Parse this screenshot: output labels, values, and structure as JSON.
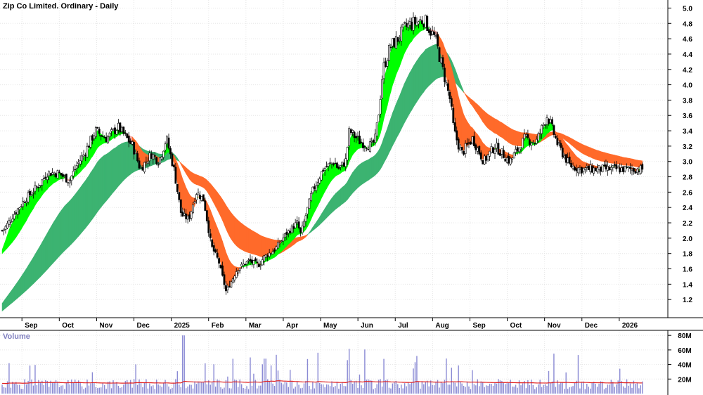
{
  "chart_data": [
    {
      "type": "candlestick",
      "title": "Zip Co Limited. Ordinary - Daily",
      "y_ticks": [
        "5.0",
        "4.8",
        "4.6",
        "4.4",
        "4.2",
        "4.0",
        "3.8",
        "3.6",
        "3.4",
        "3.2",
        "3.0",
        "2.8",
        "2.6",
        "2.4",
        "2.2",
        "2.0",
        "1.8",
        "1.6",
        "1.4",
        "1.2"
      ],
      "ylim": [
        1.0,
        5.05
      ],
      "x_ticks": [
        "Sep",
        "Oct",
        "Nov",
        "Dec",
        "2025",
        "Feb",
        "Mar",
        "Apr",
        "May",
        "Jun",
        "Jul",
        "Aug",
        "Sep",
        "Oct",
        "Nov",
        "Dec",
        "2026"
      ],
      "grid": true,
      "price_path": {
        "x_months": [
          0,
          0.1,
          0.3,
          0.6,
          1.0,
          1.2,
          1.5,
          1.8,
          2.0,
          2.2,
          2.5,
          2.8,
          3.0,
          3.1,
          3.5,
          3.7,
          4.0,
          4.2,
          4.4,
          4.6,
          4.8,
          5.0,
          5.2,
          5.4,
          5.6,
          5.8,
          6.0,
          6.3,
          6.6,
          6.9,
          7.0,
          7.3,
          7.6,
          7.9,
          8.0,
          8.3,
          8.6,
          8.9,
          9.0,
          9.2,
          9.3,
          9.6,
          9.9,
          10.0,
          10.1,
          10.2,
          10.4,
          10.6,
          10.8,
          11.0,
          11.3,
          11.6,
          12.0,
          12.1,
          12.3,
          12.6,
          12.9,
          13.2,
          13.6,
          14.0,
          14.3,
          14.6,
          14.9,
          15.2,
          15.5
        ],
        "close": [
          2.1,
          2.15,
          2.3,
          2.5,
          2.7,
          2.85,
          2.85,
          2.75,
          2.95,
          3.1,
          3.4,
          3.3,
          3.4,
          3.45,
          3.2,
          2.9,
          3.1,
          3.0,
          3.3,
          2.9,
          2.3,
          2.25,
          2.6,
          2.5,
          1.9,
          1.7,
          1.3,
          1.6,
          1.7,
          1.65,
          1.75,
          1.85,
          2.05,
          2.2,
          2.05,
          2.6,
          2.9,
          3.0,
          2.9,
          3.0,
          3.4,
          3.25,
          3.2,
          3.3,
          3.7,
          4.2,
          4.5,
          4.6,
          4.75,
          4.8,
          4.85,
          4.6,
          3.8,
          3.4,
          3.1,
          3.3,
          3.0,
          3.2,
          3.0,
          3.3,
          3.25,
          3.6,
          3.2,
          2.95,
          2.9
        ]
      },
      "indicators": {
        "short_ribbon_colors": {
          "up": "#00ff00",
          "down": "#ff6a2a",
          "neutral": "#f4a7a2"
        },
        "long_ribbon_colors": {
          "up": "#3cb371",
          "down": "#ff6a2a"
        }
      }
    },
    {
      "type": "bar",
      "label": "Volume",
      "y_ticks": [
        "80M",
        "60M",
        "40M",
        "20M"
      ],
      "ylim": [
        0,
        85
      ],
      "bar_color": "#8a8ad4",
      "average_line_color": "#e02020",
      "average_level": 15
    }
  ]
}
